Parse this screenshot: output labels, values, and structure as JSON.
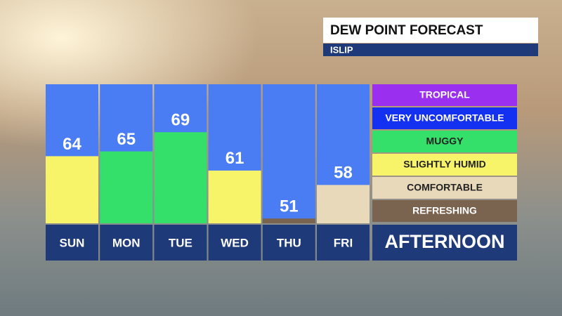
{
  "chart_data": {
    "type": "bar",
    "title": "DEW POINT FORECAST",
    "subtitle": "ISLIP",
    "categories": [
      "SUN",
      "MON",
      "TUE",
      "WED",
      "THU",
      "FRI"
    ],
    "values": [
      64,
      65,
      69,
      61,
      51,
      58
    ],
    "colors": [
      "#f8f46a",
      "#34e06a",
      "#34e06a",
      "#f8f46a",
      "#7a6450",
      "#e9d9bb"
    ],
    "background_color": "#4a7df4",
    "ylim": [
      50,
      79
    ],
    "legend": [
      {
        "label": "TROPICAL",
        "color": "#9a2ff0"
      },
      {
        "label": "VERY UNCOMFORTABLE",
        "color": "#1430f0"
      },
      {
        "label": "MUGGY",
        "color": "#34e06a"
      },
      {
        "label": "SLIGHTLY HUMID",
        "color": "#f8f46a"
      },
      {
        "label": "COMFORTABLE",
        "color": "#e9d9bb"
      },
      {
        "label": "REFRESHING",
        "color": "#7a6450"
      }
    ],
    "period": "AFTERNOON"
  }
}
